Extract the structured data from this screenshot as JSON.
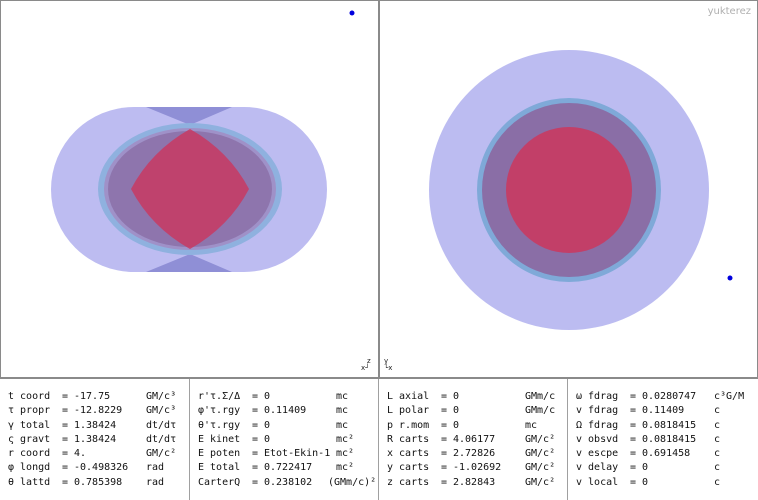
{
  "watermark": "yukterez",
  "axes": {
    "left": {
      "top": "z",
      "corner": "x┘"
    },
    "right": {
      "top": "y",
      "corner": "└x"
    }
  },
  "colors": {
    "outer_shell": "#b8b8f0",
    "ring": "#7fa9d8",
    "inner_core": "#c83a62",
    "particle": "#0000dd"
  },
  "columns": [
    {
      "rows": [
        {
          "label": "t coord",
          "value": "-17.75",
          "unit": "GM/c³"
        },
        {
          "label": "τ propr",
          "value": "-12.8229",
          "unit": "GM/c³"
        },
        {
          "label": "γ total",
          "value": "1.38424",
          "unit": "dt/dτ"
        },
        {
          "label": "ς gravt",
          "value": "1.38424",
          "unit": "dt/dτ"
        },
        {
          "label": "r coord",
          "value": "4.",
          "unit": "GM/c²"
        },
        {
          "label": "φ longd",
          "value": "-0.498326",
          "unit": "rad"
        },
        {
          "label": "θ lattd",
          "value": "0.785398",
          "unit": "rad"
        }
      ]
    },
    {
      "rows": [
        {
          "label": "r'τ.Σ/Δ",
          "value": "0",
          "unit": "mc"
        },
        {
          "label": "φ'τ.rgy",
          "value": "0.11409",
          "unit": "mc"
        },
        {
          "label": "θ'τ.rgy",
          "value": "0",
          "unit": "mc"
        },
        {
          "label": "E kinet",
          "value": "0",
          "unit": "mc²"
        },
        {
          "label": "E poten",
          "value": "Etot-Ekin-1",
          "unit": "mc²"
        },
        {
          "label": "E total",
          "value": "0.722417",
          "unit": "mc²"
        },
        {
          "label": "CarterQ",
          "value": "0.238102",
          "unit": "(GMm/c)²"
        }
      ]
    },
    {
      "rows": [
        {
          "label": "L axial",
          "value": "0",
          "unit": "GMm/c"
        },
        {
          "label": "L polar",
          "value": "0",
          "unit": "GMm/c"
        },
        {
          "label": "p r.mom",
          "value": "0",
          "unit": "mc"
        },
        {
          "label": "R carts",
          "value": "4.06177",
          "unit": "GM/c²"
        },
        {
          "label": "x carts",
          "value": "2.72826",
          "unit": "GM/c²"
        },
        {
          "label": "y carts",
          "value": "-1.02692",
          "unit": "GM/c²"
        },
        {
          "label": "z carts",
          "value": "2.82843",
          "unit": "GM/c²"
        }
      ]
    },
    {
      "rows": [
        {
          "label": "ω fdrag",
          "value": "0.0280747",
          "unit": "c³G/M"
        },
        {
          "label": "v fdrag",
          "value": "0.11409",
          "unit": "c"
        },
        {
          "label": "Ω fdrag",
          "value": "0.0818415",
          "unit": "c"
        },
        {
          "label": "v obsvd",
          "value": "0.0818415",
          "unit": "c"
        },
        {
          "label": "v escpe",
          "value": "0.691458",
          "unit": "c"
        },
        {
          "label": "v delay",
          "value": "0",
          "unit": "c"
        },
        {
          "label": "v local",
          "value": "0",
          "unit": "c"
        }
      ]
    }
  ]
}
